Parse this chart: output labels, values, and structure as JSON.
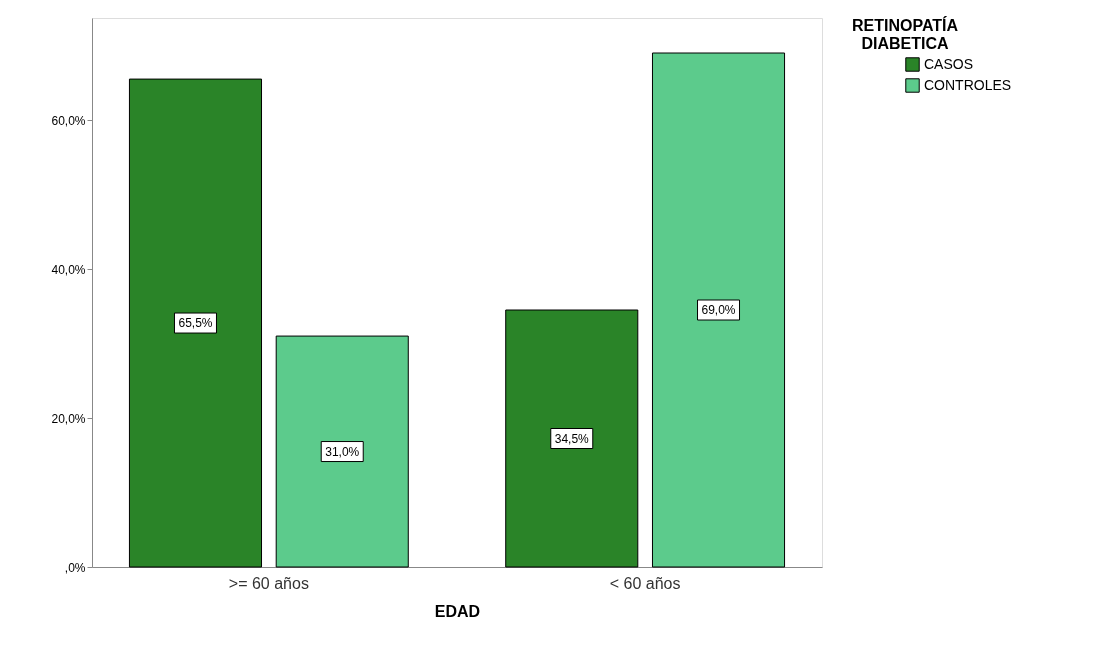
{
  "chart_data": {
    "type": "bar",
    "xlabel": "EDAD",
    "legend_title": "RETINOPATÍA DIABETICA",
    "legend": "top right",
    "grid": false,
    "categories": [
      ">= 60 años",
      "< 60 años"
    ],
    "series": [
      {
        "name": "CASOS",
        "color": "#2a8428",
        "values": [
          65.5,
          34.5
        ],
        "value_labels": [
          "65,5%",
          "34,5%"
        ]
      },
      {
        "name": "CONTROLES",
        "color": "#5ccb8c",
        "values": [
          31.0,
          69.0
        ],
        "value_labels": [
          "31,0%",
          "69,0%"
        ]
      }
    ],
    "ylim": [
      0,
      73.7
    ],
    "yticks": [
      {
        "value": 0,
        "label": ",0%"
      },
      {
        "value": 20,
        "label": "20,0%"
      },
      {
        "value": 40,
        "label": "40,0%"
      },
      {
        "value": 60,
        "label": "60,0%"
      }
    ]
  }
}
